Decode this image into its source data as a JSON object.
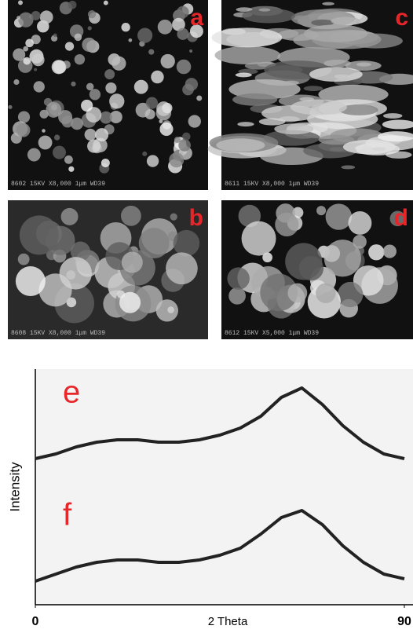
{
  "panels": [
    {
      "label": "a",
      "caption": "8602 15KV X8,000 1μm WD39"
    },
    {
      "label": "b",
      "caption": "8608 15KV X8,000 1μm WD39"
    },
    {
      "label": "c",
      "caption": "8611 15KV X8,000 1μm WD39"
    },
    {
      "label": "d",
      "caption": "8612 15KV X5,000 1μm WD39"
    }
  ],
  "chart_data": {
    "type": "line",
    "x_label": "2 Theta",
    "y_label": "Intensity",
    "x": [
      0,
      5,
      10,
      15,
      20,
      25,
      30,
      35,
      40,
      45,
      50,
      55,
      60,
      65,
      70,
      75,
      80,
      85,
      90
    ],
    "series": [
      {
        "name": "e",
        "color": "#222222",
        "values": [
          62,
          64,
          67,
          69,
          70,
          70,
          69,
          69,
          70,
          72,
          75,
          80,
          88,
          92,
          85,
          76,
          69,
          64,
          62
        ]
      },
      {
        "name": "f",
        "color": "#222222",
        "values": [
          10,
          13,
          16,
          18,
          19,
          19,
          18,
          18,
          19,
          21,
          24,
          30,
          37,
          40,
          34,
          25,
          18,
          13,
          11
        ]
      }
    ],
    "xlim": [
      0,
      90
    ],
    "xticks": [
      0,
      90
    ],
    "ylim": [
      0,
      100
    ],
    "label_color": "#e8262a"
  }
}
